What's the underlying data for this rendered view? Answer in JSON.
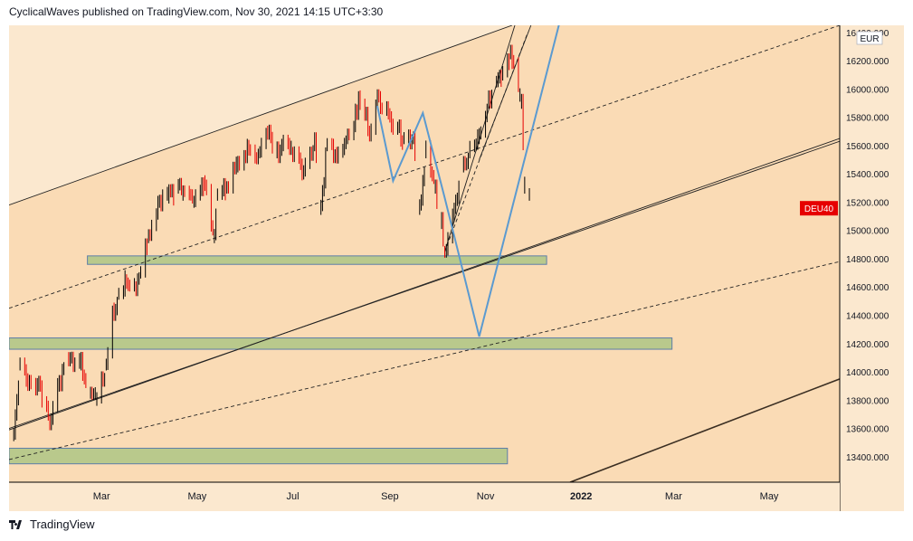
{
  "header": {
    "text": "CyclicalWaves published on TradingView.com, Nov 30, 2021 14:15 UTC+3:30"
  },
  "footer": {
    "brand": "TradingView"
  },
  "colors": {
    "background_outer": "#fbe8cf",
    "background_inner": "#fadbb5",
    "zone_fill": "#b9c98c",
    "zone_border": "#5e7ea8",
    "bull_candle": "#000000",
    "bear_candle": "#e60000",
    "projection": "#5b9ad0",
    "channel": "#222222",
    "price_badge": "#e60000"
  },
  "chart_data": {
    "type": "line",
    "title": "",
    "symbol_badge": "DEU40",
    "currency": "EUR",
    "xlabel": "",
    "ylabel": "",
    "x_ticks": [
      "Mar",
      "May",
      "Jul",
      "Sep",
      "Nov",
      "2022",
      "Mar",
      "May"
    ],
    "y_ticks": [
      "13400.000",
      "13600.000",
      "13800.000",
      "14000.000",
      "14200.000",
      "14400.000",
      "14600.000",
      "14800.000",
      "15000.000",
      "15200.000",
      "15400.000",
      "15600.000",
      "15800.000",
      "16000.000",
      "16200.000",
      "16400.000"
    ],
    "ylim": [
      13220,
      16450
    ],
    "grid": false,
    "series": [
      {
        "type": "price",
        "points": [
          [
            "2021-01-04",
            13550
          ],
          [
            "2021-01-08",
            14050
          ],
          [
            "2021-01-13",
            13950
          ],
          [
            "2021-01-20",
            13900
          ],
          [
            "2021-01-27",
            13650
          ],
          [
            "2021-02-02",
            13900
          ],
          [
            "2021-02-08",
            14100
          ],
          [
            "2021-02-16",
            14050
          ],
          [
            "2021-02-22",
            13850
          ],
          [
            "2021-02-26",
            13800
          ],
          [
            "2021-03-04",
            14050
          ],
          [
            "2021-03-09",
            14450
          ],
          [
            "2021-03-12",
            14550
          ],
          [
            "2021-03-17",
            14650
          ],
          [
            "2021-03-23",
            14600
          ],
          [
            "2021-03-26",
            14700
          ],
          [
            "2021-03-31",
            14950
          ],
          [
            "2021-04-07",
            15200
          ],
          [
            "2021-04-13",
            15230
          ],
          [
            "2021-04-19",
            15300
          ],
          [
            "2021-04-22",
            15250
          ],
          [
            "2021-04-29",
            15200
          ],
          [
            "2021-05-06",
            15350
          ],
          [
            "2021-05-12",
            14950
          ],
          [
            "2021-05-14",
            15250
          ],
          [
            "2021-05-20",
            15300
          ],
          [
            "2021-05-27",
            15450
          ],
          [
            "2021-06-03",
            15600
          ],
          [
            "2021-06-10",
            15550
          ],
          [
            "2021-06-15",
            15700
          ],
          [
            "2021-06-21",
            15550
          ],
          [
            "2021-06-25",
            15600
          ],
          [
            "2021-07-01",
            15550
          ],
          [
            "2021-07-08",
            15400
          ],
          [
            "2021-07-15",
            15600
          ],
          [
            "2021-07-19",
            15150
          ],
          [
            "2021-07-23",
            15600
          ],
          [
            "2021-07-29",
            15550
          ],
          [
            "2021-08-05",
            15650
          ],
          [
            "2021-08-11",
            15850
          ],
          [
            "2021-08-13",
            15950
          ],
          [
            "2021-08-19",
            15700
          ],
          [
            "2021-08-24",
            15900
          ],
          [
            "2021-08-30",
            15850
          ],
          [
            "2021-09-03",
            15750
          ],
          [
            "2021-09-10",
            15650
          ],
          [
            "2021-09-16",
            15650
          ],
          [
            "2021-09-20",
            15150
          ],
          [
            "2021-09-24",
            15550
          ],
          [
            "2021-09-30",
            15300
          ],
          [
            "2021-10-04",
            15050
          ],
          [
            "2021-10-06",
            14850
          ],
          [
            "2021-10-12",
            15100
          ],
          [
            "2021-10-18",
            15450
          ],
          [
            "2021-10-22",
            15550
          ],
          [
            "2021-10-28",
            15650
          ],
          [
            "2021-11-03",
            15900
          ],
          [
            "2021-11-08",
            16050
          ],
          [
            "2021-11-12",
            16100
          ],
          [
            "2021-11-17",
            16250
          ],
          [
            "2021-11-19",
            16200
          ],
          [
            "2021-11-23",
            15950
          ],
          [
            "2021-11-24",
            15900
          ],
          [
            "2021-11-26",
            15300
          ],
          [
            "2021-11-29",
            15250
          ],
          [
            "2021-11-30",
            15080
          ]
        ]
      },
      {
        "type": "projection",
        "points": [
          [
            "2021-08-24",
            15880
          ],
          [
            "2021-09-03",
            15350
          ],
          [
            "2021-09-22",
            15830
          ],
          [
            "2021-10-06",
            15230
          ],
          [
            "2021-10-28",
            14250
          ],
          [
            "2021-12-18",
            16460
          ]
        ]
      }
    ],
    "zones": [
      {
        "from": "2021-02-20",
        "to": "2021-12-10",
        "low": 14760,
        "high": 14820
      },
      {
        "from": "2021-01-01",
        "to": "2022-02-28",
        "low": 14160,
        "high": 14240
      },
      {
        "from": "2021-01-01",
        "to": "2021-11-15",
        "low": 13350,
        "high": 13460
      }
    ],
    "trendlines": [
      {
        "style": "solid",
        "from": [
          "2021-01-01",
          15180
        ],
        "to": [
          "2021-11-18",
          16450
        ]
      },
      {
        "style": "dashed",
        "from": [
          "2021-01-01",
          14450
        ],
        "to": [
          "2022-06-15",
          16450
        ]
      },
      {
        "style": "solid",
        "from": [
          "2021-01-01",
          13590
        ],
        "to": [
          "2022-06-15",
          15650
        ]
      },
      {
        "style": "solid",
        "from": [
          "2021-01-01",
          13600
        ],
        "to": [
          "2022-06-15",
          15630
        ]
      },
      {
        "style": "dashed",
        "from": [
          "2021-01-01",
          13380
        ],
        "to": [
          "2022-06-15",
          14780
        ]
      },
      {
        "style": "solid",
        "from": [
          "2021-12-25",
          13220
        ],
        "to": [
          "2022-06-15",
          13950
        ]
      },
      {
        "style": "solid",
        "from": [
          "2021-10-06",
          14850
        ],
        "to": [
          "2021-11-20",
          16460
        ]
      },
      {
        "style": "dashed",
        "from": [
          "2021-10-06",
          14850
        ],
        "to": [
          "2021-11-28",
          16400
        ]
      },
      {
        "style": "solid",
        "from": [
          "2021-10-28",
          15500
        ],
        "to": [
          "2021-11-30",
          16450
        ]
      }
    ],
    "last_price_label": "DEU40"
  }
}
